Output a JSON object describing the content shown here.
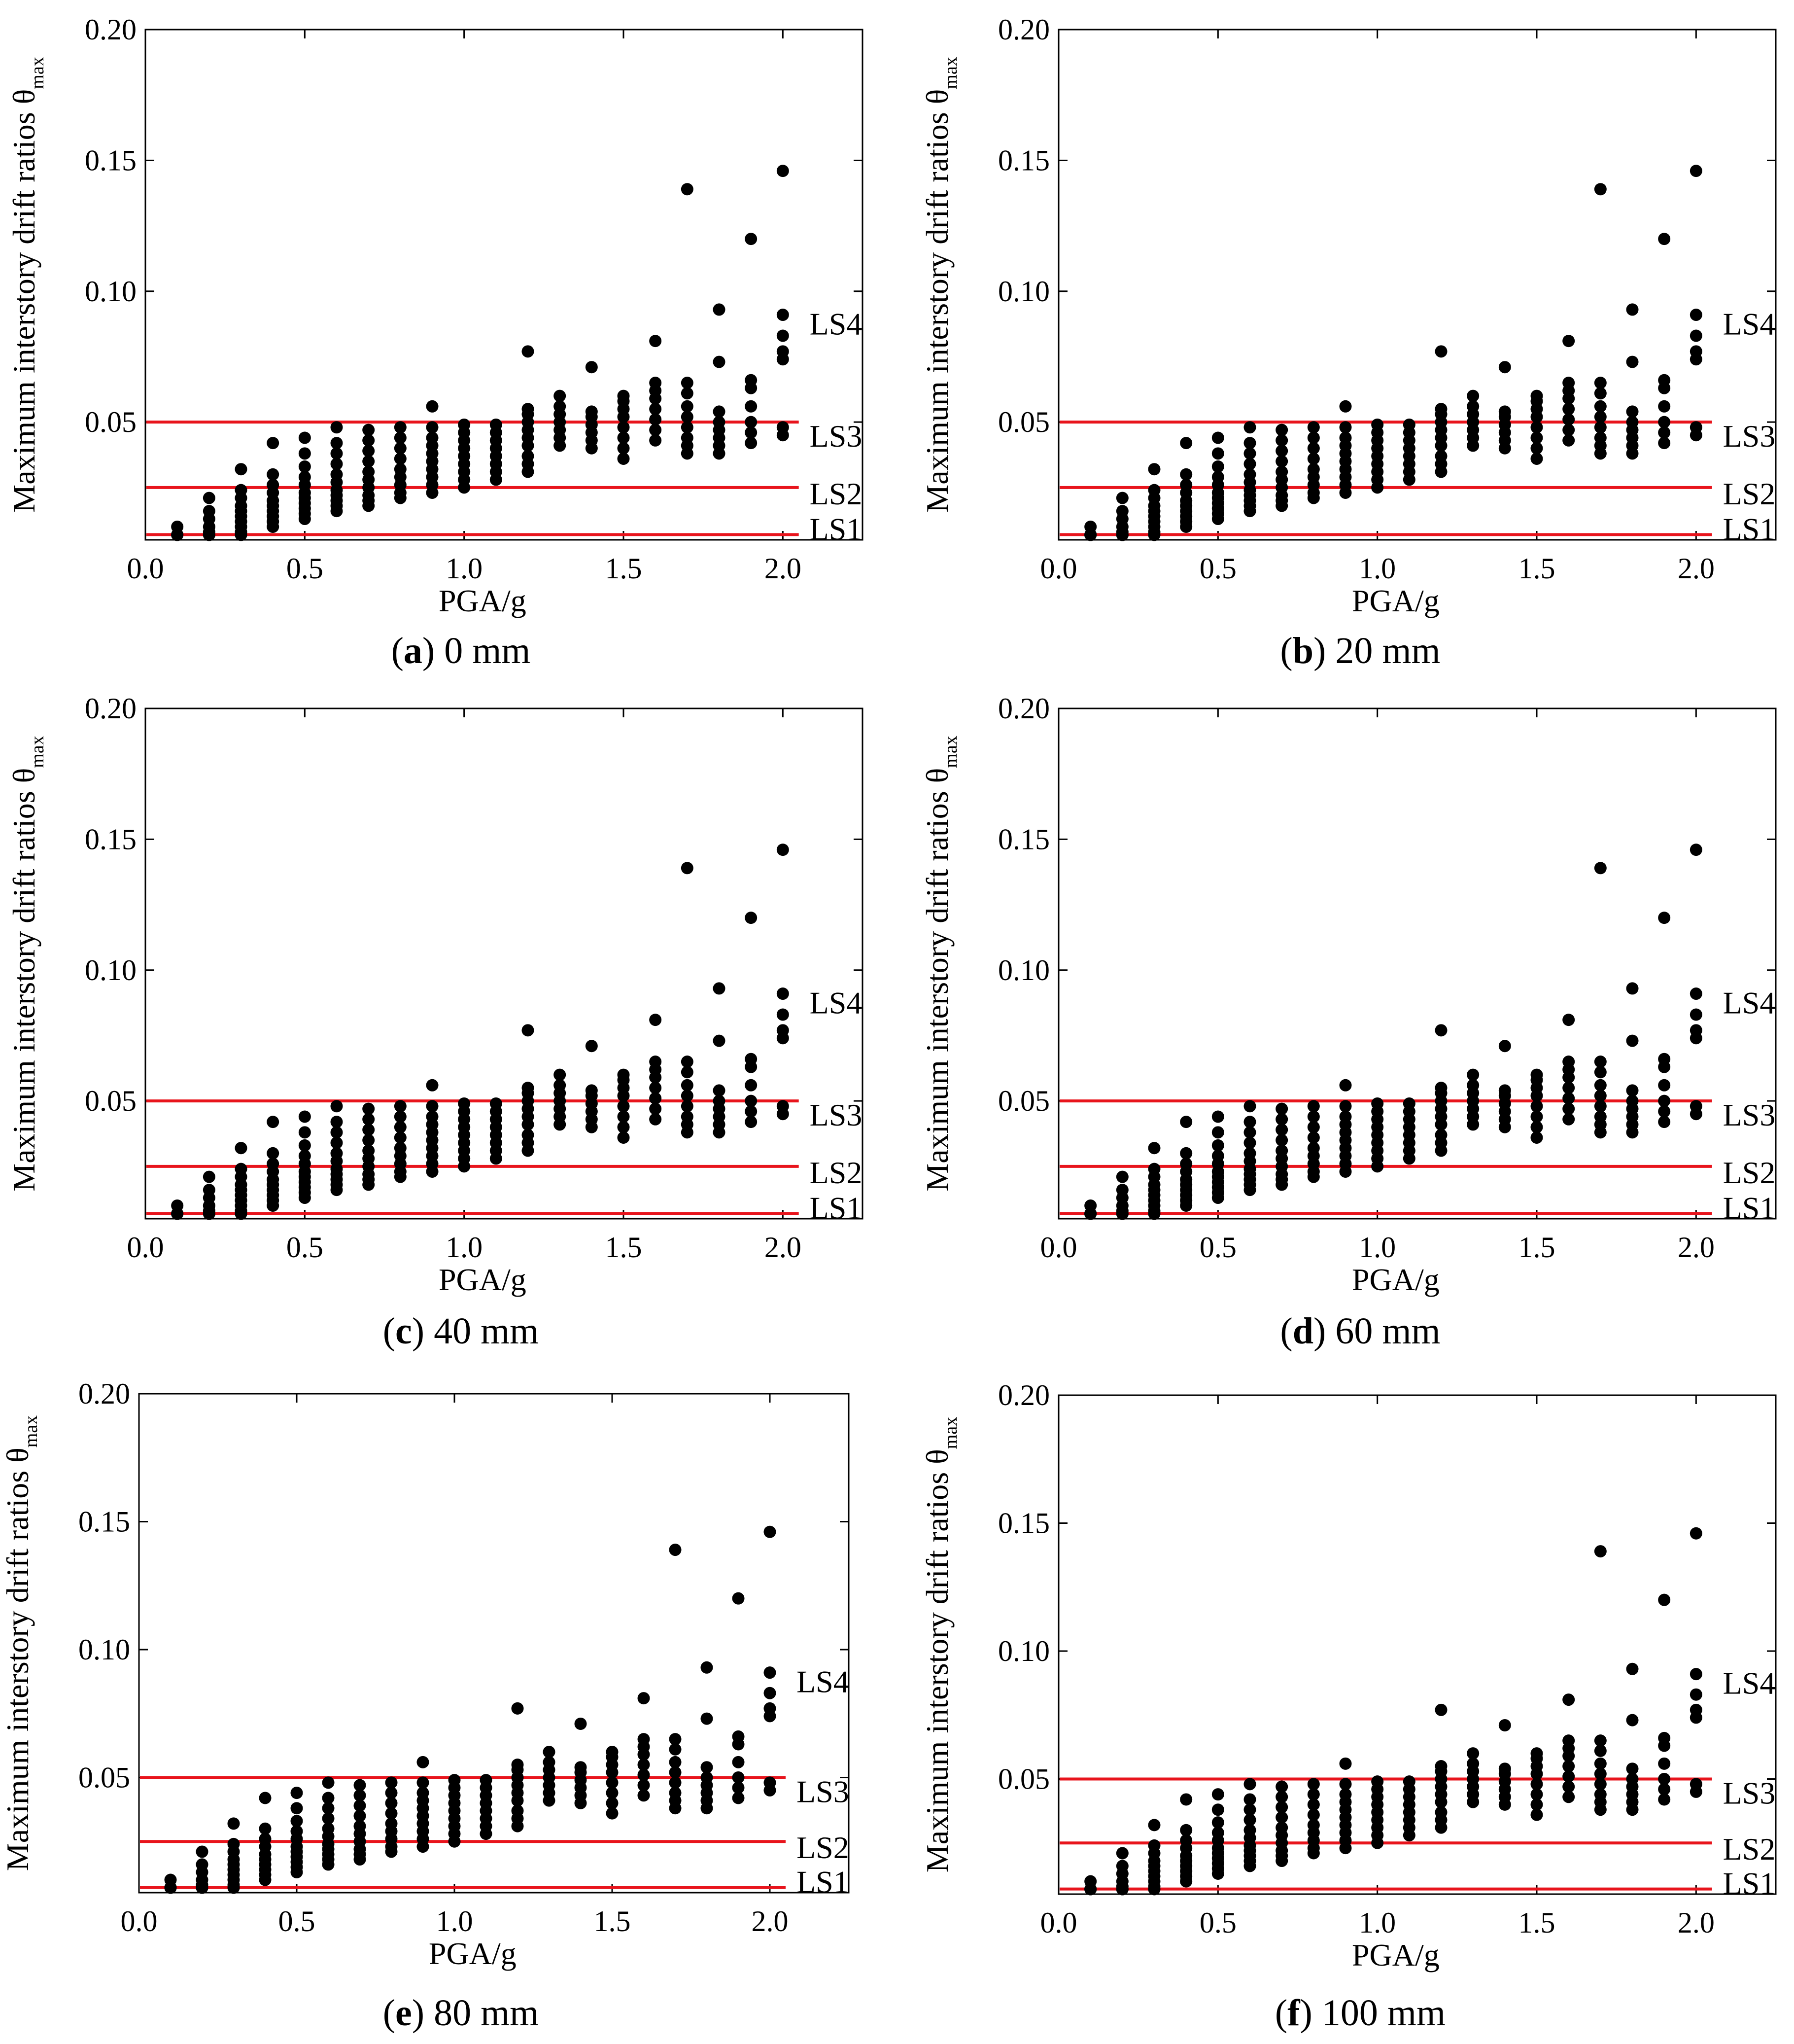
{
  "figure": {
    "y_axis_label": "Maximum interstory drift ratios θ",
    "y_axis_subscript": "max",
    "x_axis_label": "PGA/g"
  },
  "chart_data": [
    {
      "type": "scatter",
      "caption_letter": "a",
      "caption_text": "0 mm"
    },
    {
      "type": "scatter",
      "caption_letter": "b",
      "caption_text": "20 mm"
    },
    {
      "type": "scatter",
      "caption_letter": "c",
      "caption_text": "40 mm"
    },
    {
      "type": "scatter",
      "caption_letter": "d",
      "caption_text": "60 mm"
    },
    {
      "type": "scatter",
      "caption_letter": "e",
      "caption_text": "80 mm"
    },
    {
      "type": "scatter",
      "caption_letter": "f",
      "caption_text": "100 mm"
    }
  ],
  "shared": {
    "xlabel": "PGA/g",
    "ylabel": "Maximum interstory drift ratios θmax",
    "xlim": [
      0,
      2.25
    ],
    "ylim": [
      0.005,
      0.2
    ],
    "x_ticks": [
      0.0,
      0.5,
      1.0,
      1.5,
      2.0
    ],
    "x_tick_labels": [
      "0.0",
      "0.5",
      "1.0",
      "1.5",
      "2.0"
    ],
    "y_ticks": [
      0.05,
      0.1,
      0.15,
      0.2
    ],
    "y_tick_labels": [
      "0.05",
      "0.10",
      "0.15",
      "0.20"
    ],
    "limit_states": [
      {
        "name": "LS1",
        "value": 0.007
      },
      {
        "name": "LS2",
        "value": 0.025
      },
      {
        "name": "LS3",
        "value": 0.05
      },
      {
        "name": "LS4",
        "value": 0.088
      }
    ],
    "limit_line_color": "#e8141c",
    "marker_color": "#000000",
    "points": [
      {
        "pga": 0.1,
        "theta": [
          0.003,
          0.005,
          0.007,
          0.01
        ]
      },
      {
        "pga": 0.2,
        "theta": [
          0.004,
          0.006,
          0.008,
          0.01,
          0.013,
          0.016,
          0.021
        ]
      },
      {
        "pga": 0.3,
        "theta": [
          0.006,
          0.008,
          0.01,
          0.012,
          0.014,
          0.016,
          0.018,
          0.021,
          0.024,
          0.032
        ]
      },
      {
        "pga": 0.4,
        "theta": [
          0.01,
          0.012,
          0.014,
          0.016,
          0.018,
          0.02,
          0.023,
          0.026,
          0.03,
          0.042
        ]
      },
      {
        "pga": 0.5,
        "theta": [
          0.013,
          0.015,
          0.017,
          0.019,
          0.021,
          0.023,
          0.026,
          0.029,
          0.033,
          0.038,
          0.044
        ]
      },
      {
        "pga": 0.6,
        "theta": [
          0.016,
          0.018,
          0.02,
          0.022,
          0.024,
          0.027,
          0.03,
          0.034,
          0.038,
          0.042,
          0.048
        ]
      },
      {
        "pga": 0.7,
        "theta": [
          0.018,
          0.02,
          0.022,
          0.025,
          0.028,
          0.031,
          0.035,
          0.039,
          0.043,
          0.047
        ]
      },
      {
        "pga": 0.8,
        "theta": [
          0.021,
          0.023,
          0.026,
          0.029,
          0.032,
          0.036,
          0.04,
          0.044,
          0.048
        ]
      },
      {
        "pga": 0.9,
        "theta": [
          0.023,
          0.026,
          0.029,
          0.032,
          0.035,
          0.038,
          0.041,
          0.044,
          0.048,
          0.056
        ]
      },
      {
        "pga": 1.0,
        "theta": [
          0.025,
          0.028,
          0.031,
          0.034,
          0.037,
          0.04,
          0.043,
          0.046,
          0.049
        ]
      },
      {
        "pga": 1.1,
        "theta": [
          0.028,
          0.031,
          0.034,
          0.037,
          0.04,
          0.043,
          0.046,
          0.049
        ]
      },
      {
        "pga": 1.2,
        "theta": [
          0.031,
          0.034,
          0.037,
          0.041,
          0.044,
          0.047,
          0.05,
          0.053,
          0.055,
          0.077
        ]
      },
      {
        "pga": 1.3,
        "theta": [
          0.041,
          0.044,
          0.047,
          0.05,
          0.053,
          0.056,
          0.06
        ]
      },
      {
        "pga": 1.4,
        "theta": [
          0.04,
          0.043,
          0.046,
          0.049,
          0.052,
          0.054,
          0.071
        ]
      },
      {
        "pga": 1.5,
        "theta": [
          0.036,
          0.04,
          0.044,
          0.048,
          0.052,
          0.055,
          0.058,
          0.06
        ]
      },
      {
        "pga": 1.6,
        "theta": [
          0.043,
          0.047,
          0.051,
          0.055,
          0.059,
          0.062,
          0.065,
          0.081
        ]
      },
      {
        "pga": 1.7,
        "theta": [
          0.038,
          0.041,
          0.044,
          0.048,
          0.052,
          0.056,
          0.061,
          0.065,
          0.139
        ]
      },
      {
        "pga": 1.8,
        "theta": [
          0.038,
          0.041,
          0.044,
          0.047,
          0.05,
          0.054,
          0.073,
          0.093
        ]
      },
      {
        "pga": 1.9,
        "theta": [
          0.042,
          0.046,
          0.05,
          0.056,
          0.063,
          0.066,
          0.12
        ]
      },
      {
        "pga": 2.0,
        "theta": [
          0.045,
          0.048,
          0.074,
          0.077,
          0.083,
          0.091,
          0.146
        ]
      }
    ]
  }
}
